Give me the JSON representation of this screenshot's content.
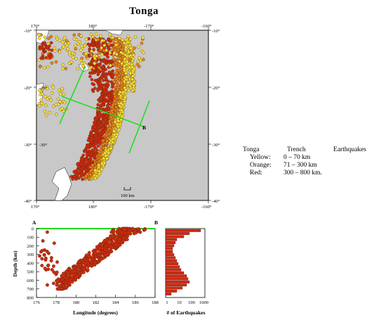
{
  "map": {
    "title": "Tonga",
    "top_lon_labels": [
      "170°",
      "180°",
      "-170°",
      "-160°"
    ],
    "bottom_lon_labels": [
      "170°",
      "180°",
      "-170°",
      "-160°"
    ],
    "left_lat_labels": [
      "-10°",
      "-20°",
      "-30°",
      "-40°"
    ],
    "right_lat_labels": [
      "-10°",
      "-20°",
      "-30°",
      "-40°"
    ],
    "inner_lat_labels": [
      "-20°",
      "-30°"
    ],
    "scale_label": "100 km",
    "profile_label": "B",
    "colors": {
      "ocean": "#c8c8c8",
      "land": "#ffffff",
      "yellow": "#f5e23a",
      "orange": "#e8821e",
      "red": "#cc2a12",
      "profile": "#22dd22"
    }
  },
  "legend": {
    "title_words": [
      "Tonga",
      "Trench",
      "Earthquakes"
    ],
    "rows": [
      {
        "label": "Yellow:",
        "range": "0 – 70 km"
      },
      {
        "label": "Orange:",
        "range": "71 – 300 km"
      },
      {
        "label": "Red:",
        "range": "300 – 800 km."
      }
    ]
  },
  "depth_section": {
    "corner_left": "A",
    "corner_right": "B",
    "ylabel": "Depth (km)",
    "xlabel": "Longitude (degrees)",
    "xticks": [
      "176",
      "178",
      "180",
      "182",
      "184",
      "186",
      "188"
    ],
    "yticks": [
      "0",
      "100",
      "200",
      "300",
      "400",
      "500",
      "600",
      "700",
      "800"
    ]
  },
  "histogram": {
    "xlabel": "# of Earthquakes",
    "xticks": [
      "1",
      "10",
      "100",
      "1000"
    ]
  }
}
